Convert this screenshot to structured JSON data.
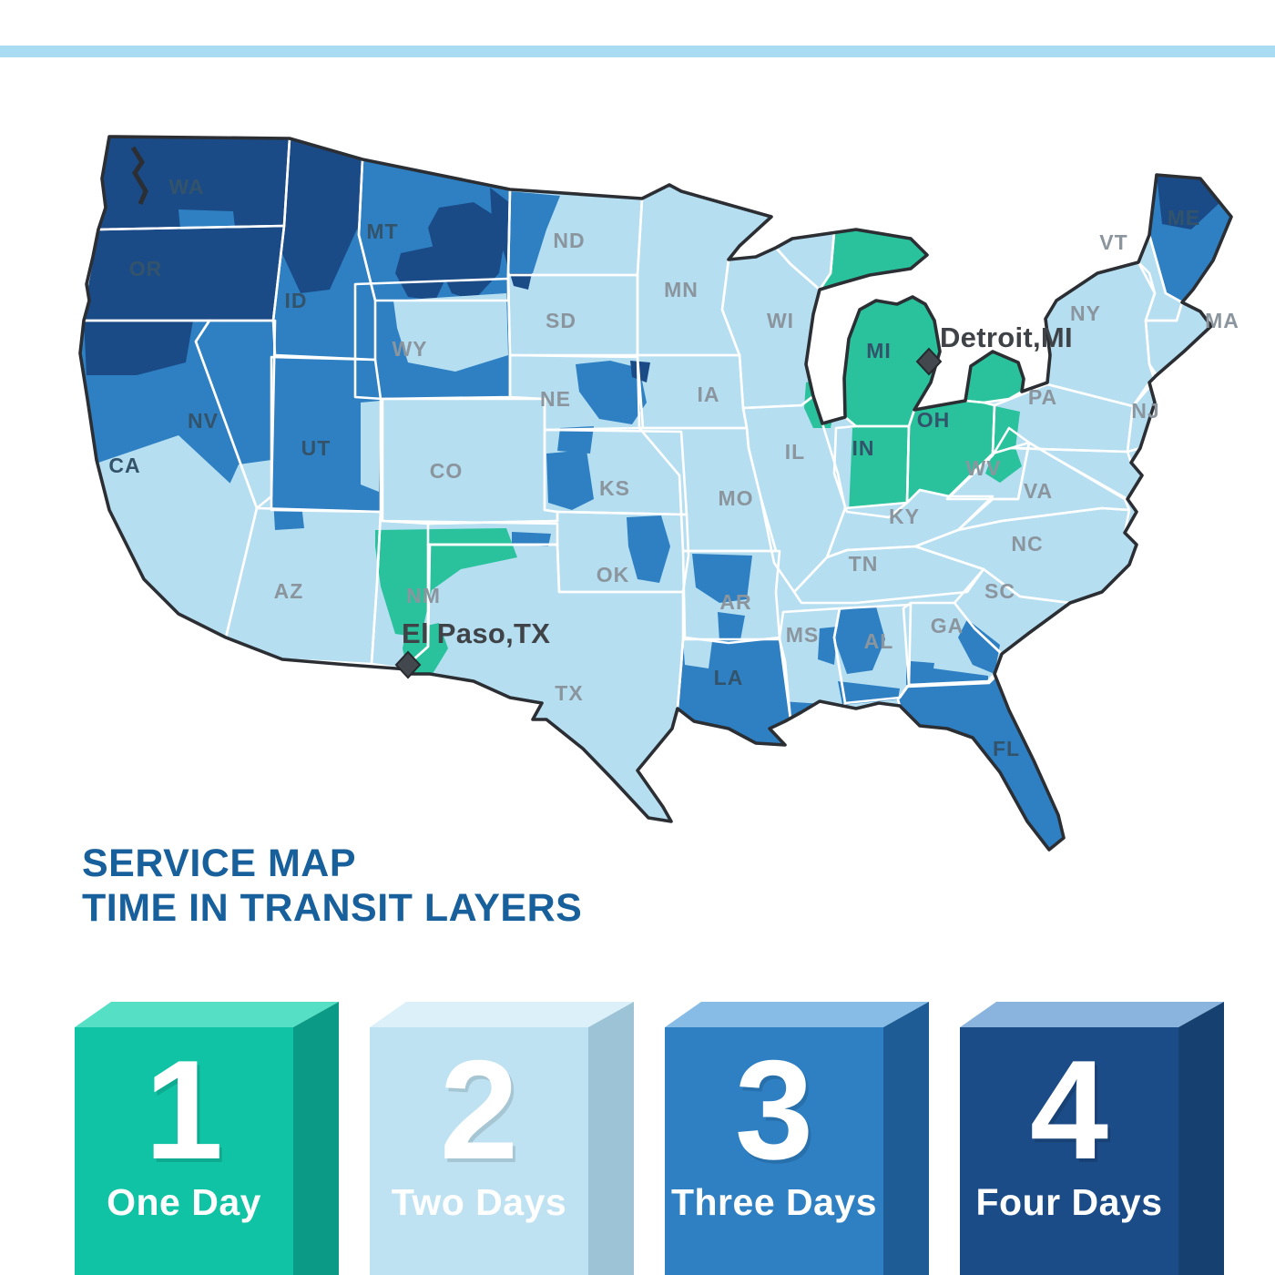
{
  "top_stripe": {
    "color": "#a9dcf2"
  },
  "title": {
    "line1": "SERVICE MAP",
    "line2": "TIME IN TRANSIT LAYERS",
    "color": "#18609b"
  },
  "map": {
    "region": "Contiguous United States",
    "day_colors": {
      "1": "#29c29c",
      "2": "#b5def1",
      "3": "#2e80c3",
      "4": "#1b4b87"
    },
    "outline_color": "#2b2e33",
    "state_border_color": "#ffffff",
    "label_colors": {
      "gray": "#8b959e",
      "dark": "#33536b"
    },
    "city_label_color": "#3f4347",
    "city_marker_color": "#43484e",
    "states": [
      {
        "id": "WA",
        "label": "WA",
        "days": 4,
        "tone": "dark"
      },
      {
        "id": "OR",
        "label": "OR",
        "days": 4,
        "tone": "dark"
      },
      {
        "id": "ID",
        "label": "ID",
        "days": 3,
        "tone": "dark"
      },
      {
        "id": "MT",
        "label": "MT",
        "days": 3,
        "tone": "dark"
      },
      {
        "id": "WY",
        "label": "WY",
        "days": 3,
        "tone": "gray"
      },
      {
        "id": "ND",
        "label": "ND",
        "days": 2,
        "tone": "gray"
      },
      {
        "id": "SD",
        "label": "SD",
        "days": 2,
        "tone": "gray"
      },
      {
        "id": "MN",
        "label": "MN",
        "days": 2,
        "tone": "gray"
      },
      {
        "id": "WI",
        "label": "WI",
        "days": 2,
        "tone": "gray"
      },
      {
        "id": "MI",
        "label": "MI",
        "days": 1,
        "tone": "dark"
      },
      {
        "id": "NY",
        "label": "NY",
        "days": 2,
        "tone": "gray"
      },
      {
        "id": "VT",
        "label": "VT",
        "days": 2,
        "tone": "gray"
      },
      {
        "id": "ME",
        "label": "ME",
        "days": 3,
        "tone": "dark"
      },
      {
        "id": "MA",
        "label": "MA",
        "days": 2,
        "tone": "gray"
      },
      {
        "id": "NE",
        "label": "NE",
        "days": 2,
        "tone": "gray"
      },
      {
        "id": "IA",
        "label": "IA",
        "days": 2,
        "tone": "gray"
      },
      {
        "id": "PA",
        "label": "PA",
        "days": 2,
        "tone": "gray"
      },
      {
        "id": "NJ",
        "label": "NJ",
        "days": 2,
        "tone": "gray"
      },
      {
        "id": "OH",
        "label": "OH",
        "days": 1,
        "tone": "dark"
      },
      {
        "id": "IN",
        "label": "IN",
        "days": 1,
        "tone": "dark"
      },
      {
        "id": "IL",
        "label": "IL",
        "days": 2,
        "tone": "gray"
      },
      {
        "id": "NV",
        "label": "NV",
        "days": 3,
        "tone": "dark"
      },
      {
        "id": "UT",
        "label": "UT",
        "days": 3,
        "tone": "dark"
      },
      {
        "id": "CO",
        "label": "CO",
        "days": 2,
        "tone": "gray"
      },
      {
        "id": "KS",
        "label": "KS",
        "days": 2,
        "tone": "gray"
      },
      {
        "id": "MO",
        "label": "MO",
        "days": 2,
        "tone": "gray"
      },
      {
        "id": "WV",
        "label": "WV",
        "days": 2,
        "tone": "gray"
      },
      {
        "id": "VA",
        "label": "VA",
        "days": 2,
        "tone": "gray"
      },
      {
        "id": "KY",
        "label": "KY",
        "days": 2,
        "tone": "gray"
      },
      {
        "id": "CA",
        "label": "CA",
        "days": 3,
        "tone": "dark"
      },
      {
        "id": "NC",
        "label": "NC",
        "days": 2,
        "tone": "gray"
      },
      {
        "id": "TN",
        "label": "TN",
        "days": 2,
        "tone": "gray"
      },
      {
        "id": "SC",
        "label": "SC",
        "days": 2,
        "tone": "gray"
      },
      {
        "id": "AZ",
        "label": "AZ",
        "days": 2,
        "tone": "gray"
      },
      {
        "id": "OK",
        "label": "OK",
        "days": 2,
        "tone": "gray"
      },
      {
        "id": "NM",
        "label": "NM",
        "days": 2,
        "tone": "gray"
      },
      {
        "id": "AR",
        "label": "AR",
        "days": 2,
        "tone": "gray"
      },
      {
        "id": "GA",
        "label": "GA",
        "days": 2,
        "tone": "gray"
      },
      {
        "id": "MS",
        "label": "MS",
        "days": 2,
        "tone": "gray"
      },
      {
        "id": "AL",
        "label": "AL",
        "days": 2,
        "tone": "gray"
      },
      {
        "id": "LA",
        "label": "LA",
        "days": 3,
        "tone": "dark"
      },
      {
        "id": "TX",
        "label": "TX",
        "days": 2,
        "tone": "gray"
      },
      {
        "id": "FL",
        "label": "FL",
        "days": 3,
        "tone": "dark"
      }
    ],
    "cities": [
      {
        "id": "detroit",
        "name": "Detroit,MI"
      },
      {
        "id": "elpaso",
        "name": "El Paso,TX"
      }
    ]
  },
  "legend": {
    "items": [
      {
        "number": "1",
        "label": "One Day",
        "front": "#10c3a5",
        "top": "#55e0c6",
        "side": "#0b9a85"
      },
      {
        "number": "2",
        "label": "Two Days",
        "front": "#bfe2f2",
        "top": "#dcf0fa",
        "side": "#9cc3d6"
      },
      {
        "number": "3",
        "label": "Three Days",
        "front": "#2e80c3",
        "top": "#86bce6",
        "side": "#1d5c94"
      },
      {
        "number": "4",
        "label": "Four Days",
        "front": "#1c4c87",
        "top": "#8ab4dd",
        "side": "#16406f"
      }
    ],
    "number_color": "#ffffff",
    "label_color": "#ffffff"
  }
}
